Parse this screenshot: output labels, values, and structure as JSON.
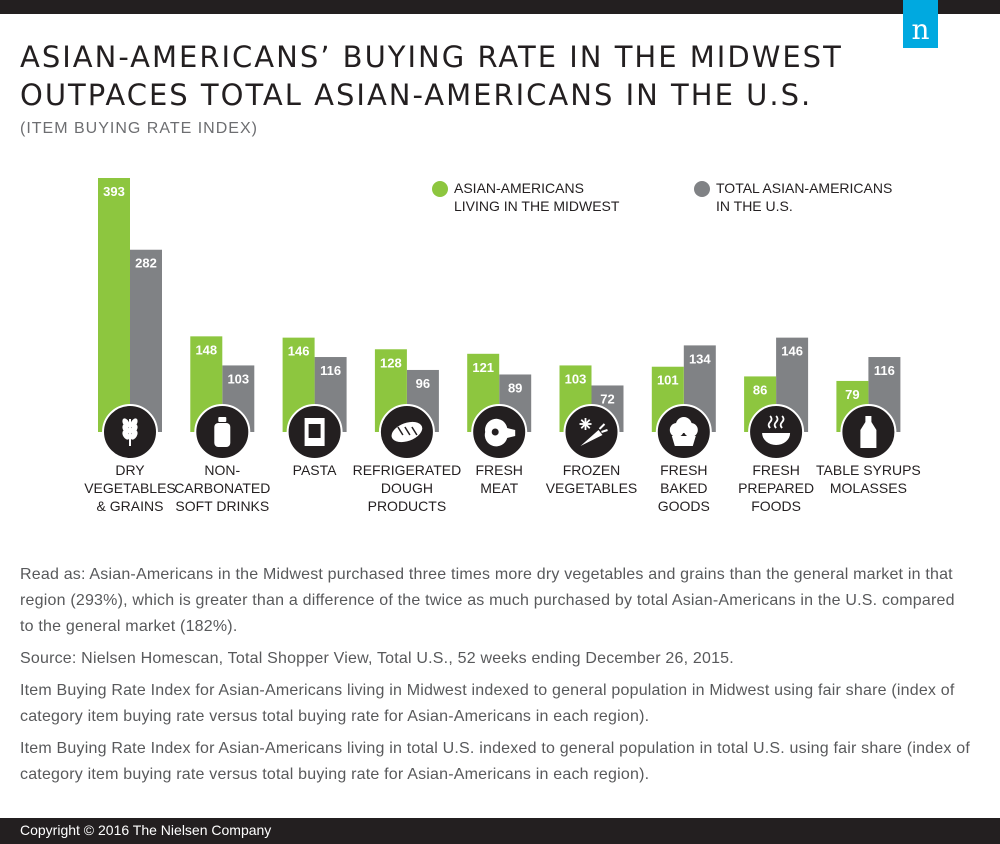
{
  "title_line1": "ASIAN-AMERICANS’ BUYING RATE IN THE MIDWEST",
  "title_line2": "OUTPACES TOTAL ASIAN-AMERICANS IN THE U.S.",
  "subtitle": "(ITEM BUYING RATE INDEX)",
  "logo_letter": "n",
  "colors": {
    "midwest": "#8dc63f",
    "total_us": "#808285",
    "icon_circle": "#231f20",
    "brand": "#00a9e0"
  },
  "chart_data": {
    "type": "bar",
    "title": "ASIAN-AMERICANS’ BUYING RATE IN THE MIDWEST OUTPACES TOTAL ASIAN-AMERICANS IN THE U.S.",
    "subtitle": "(ITEM BUYING RATE INDEX)",
    "categories": [
      {
        "lines": [
          "DRY",
          "VEGETABLES",
          "& GRAINS"
        ],
        "icon": "wheat-icon"
      },
      {
        "lines": [
          "NON-",
          "CARBONATED",
          "SOFT DRINKS"
        ],
        "icon": "bottle-icon"
      },
      {
        "lines": [
          "PASTA"
        ],
        "icon": "pasta-box-icon"
      },
      {
        "lines": [
          "REFRIGERATED",
          "DOUGH",
          "PRODUCTS"
        ],
        "icon": "bread-icon"
      },
      {
        "lines": [
          "FRESH",
          "MEAT"
        ],
        "icon": "ham-icon"
      },
      {
        "lines": [
          "FROZEN",
          "VEGETABLES"
        ],
        "icon": "frozen-carrot-icon"
      },
      {
        "lines": [
          "FRESH",
          "BAKED",
          "GOODS"
        ],
        "icon": "muffin-icon"
      },
      {
        "lines": [
          "FRESH",
          "PREPARED",
          "FOODS"
        ],
        "icon": "hot-bowl-icon"
      },
      {
        "lines": [
          "TABLE SYRUPS",
          "MOLASSES"
        ],
        "icon": "syrup-bottle-icon"
      }
    ],
    "series": [
      {
        "name": "ASIAN-AMERICANS LIVING IN THE MIDWEST",
        "legend_lines": [
          "ASIAN-AMERICANS",
          "LIVING IN THE MIDWEST"
        ],
        "values": [
          393,
          148,
          146,
          128,
          121,
          103,
          101,
          86,
          79
        ]
      },
      {
        "name": "TOTAL ASIAN-AMERICANS IN THE U.S.",
        "legend_lines": [
          "TOTAL ASIAN-AMERICANS",
          "IN THE U.S."
        ],
        "values": [
          282,
          103,
          116,
          96,
          89,
          72,
          134,
          146,
          116
        ]
      }
    ],
    "ylim": [
      0,
      393
    ],
    "grid": false,
    "legend_position": "top-right"
  },
  "notes": [
    "Read as: Asian-Americans in the Midwest purchased three times more dry vegetables and grains than the general market in that region (293%), which is greater than a difference of the twice as much purchased by total Asian-Americans in the U.S. compared to the general market (182%).",
    "Source: Nielsen Homescan, Total Shopper View, Total U.S., 52 weeks ending December 26, 2015.",
    "Item Buying Rate Index for Asian-Americans living in Midwest indexed to general population in Midwest using fair share (index of category item buying rate versus total buying rate for Asian-Americans in each region).",
    "Item Buying Rate Index for Asian-Americans living in total U.S. indexed to general population in total U.S. using fair share (index of category item buying rate versus total buying rate for Asian-Americans in each region)."
  ],
  "footer": "Copyright © 2016 The Nielsen Company"
}
